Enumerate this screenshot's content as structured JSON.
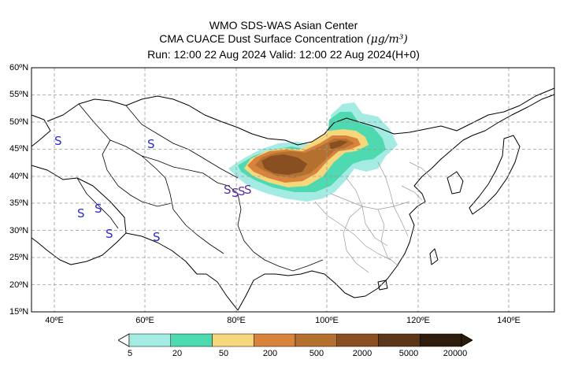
{
  "header": {
    "line1": "WMO SDS-WAS Asian Center",
    "line2_prefix": "CMA CUACE Dust Surface Concentration ",
    "line2_units": "(μg/m³)",
    "line3": "Run: 12:00 22 Aug 2024    Valid: 12:00 22 Aug 2024(H+0)"
  },
  "map": {
    "lat_labels": [
      "60ºN",
      "55ºN",
      "50ºN",
      "45ºN",
      "40ºN",
      "35ºN",
      "30ºN",
      "25ºN",
      "20ºN",
      "15ºN"
    ],
    "lon_labels": [
      "40ºE",
      "60ºE",
      "80ºE",
      "100ºE",
      "120ºE",
      "140ºE"
    ],
    "lat_range": [
      15,
      60
    ],
    "lon_range": [
      35,
      150
    ],
    "grid": true,
    "storm_symbol": "S",
    "storm_symbol_color": "#2b2bd1",
    "dust_colors": [
      "#a3ebe3",
      "#4fd9b1",
      "#f6d77b",
      "#d8833b",
      "#b4702f",
      "#8a4f21",
      "#5c3618",
      "#2d1b0c"
    ]
  },
  "colorbar": {
    "labels": [
      "5",
      "20",
      "50",
      "200",
      "500",
      "2000",
      "5000",
      "20000"
    ],
    "colors": [
      "#a3ebe3",
      "#4fd9b1",
      "#f6d77b",
      "#d8833b",
      "#b4702f",
      "#8a4f21",
      "#5c3618",
      "#2d1b0c"
    ]
  }
}
